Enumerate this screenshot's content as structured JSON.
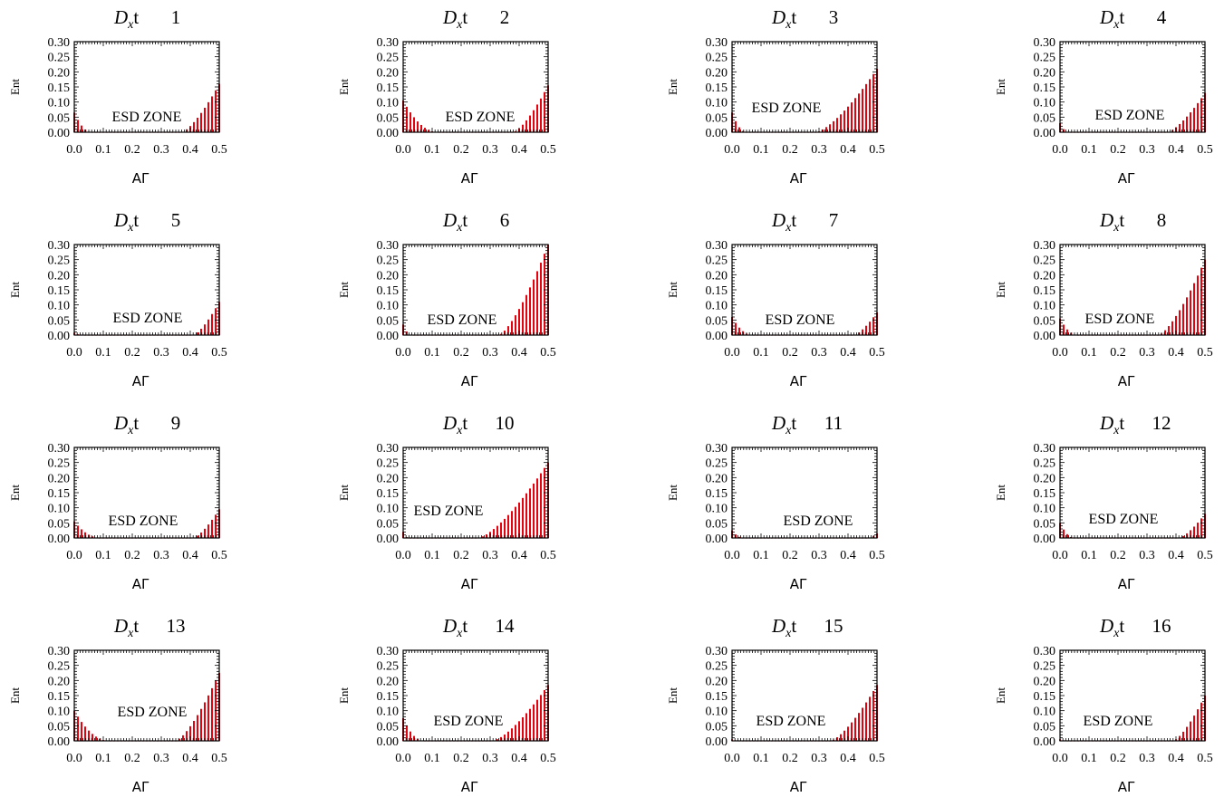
{
  "figure": {
    "title_prefix": "D",
    "title_sub": "x",
    "title_suffix": "t",
    "xlabel": "AΓ",
    "ylabel": "Ent",
    "zone_label": "ESD ZONE",
    "bar_color": "#e8000d",
    "axis_color": "#000000"
  },
  "chart_data": [
    {
      "type": "bar",
      "title_number": "1",
      "xlim": [
        0,
        0.5
      ],
      "ylim": [
        0,
        0.3
      ],
      "xticks": [
        "0.0",
        "0.1",
        "0.2",
        "0.3",
        "0.4",
        "0.5"
      ],
      "yticks": [
        "0.00",
        "0.05",
        "0.10",
        "0.15",
        "0.20",
        "0.25",
        "0.30"
      ],
      "xlabel": "AΓ",
      "ylabel": "Ent",
      "annotation": "ESD ZONE",
      "left": {
        "y0": 0.065,
        "end": 0.06
      },
      "right": {
        "start": 0.37,
        "y1": 0.16
      }
    },
    {
      "type": "bar",
      "title_number": "2",
      "xlim": [
        0,
        0.5
      ],
      "ylim": [
        0,
        0.3
      ],
      "xticks": [
        "0.0",
        "0.1",
        "0.2",
        "0.3",
        "0.4",
        "0.5"
      ],
      "yticks": [
        "0.00",
        "0.05",
        "0.10",
        "0.15",
        "0.20",
        "0.25",
        "0.30"
      ],
      "xlabel": "AΓ",
      "ylabel": "Ent",
      "annotation": "ESD ZONE",
      "left": {
        "y0": 0.105,
        "end": 0.12
      },
      "right": {
        "start": 0.38,
        "y1": 0.155
      }
    },
    {
      "type": "bar",
      "title_number": "3",
      "xlim": [
        0,
        0.5
      ],
      "ylim": [
        0,
        0.3
      ],
      "xticks": [
        "0.0",
        "0.1",
        "0.2",
        "0.3",
        "0.4",
        "0.5"
      ],
      "yticks": [
        "0.00",
        "0.05",
        "0.10",
        "0.15",
        "0.20",
        "0.25",
        "0.30"
      ],
      "xlabel": "AΓ",
      "ylabel": "Ent",
      "annotation": "ESD ZONE",
      "left": {
        "y0": 0.065,
        "end": 0.05
      },
      "right": {
        "start": 0.29,
        "y1": 0.21
      }
    },
    {
      "type": "bar",
      "title_number": "4",
      "xlim": [
        0,
        0.5
      ],
      "ylim": [
        0,
        0.3
      ],
      "xticks": [
        "0.0",
        "0.1",
        "0.2",
        "0.3",
        "0.4",
        "0.5"
      ],
      "yticks": [
        "0.00",
        "0.05",
        "0.10",
        "0.15",
        "0.20",
        "0.25",
        "0.30"
      ],
      "xlabel": "AΓ",
      "ylabel": "Ent",
      "annotation": "ESD ZONE",
      "left": {
        "y0": 0.03,
        "end": 0.03
      },
      "right": {
        "start": 0.37,
        "y1": 0.13
      }
    },
    {
      "type": "bar",
      "title_number": "5",
      "xlim": [
        0,
        0.5
      ],
      "ylim": [
        0,
        0.3
      ],
      "xticks": [
        "0.0",
        "0.1",
        "0.2",
        "0.3",
        "0.4",
        "0.5"
      ],
      "yticks": [
        "0.00",
        "0.05",
        "0.10",
        "0.15",
        "0.20",
        "0.25",
        "0.30"
      ],
      "xlabel": "AΓ",
      "ylabel": "Ent",
      "annotation": "ESD ZONE",
      "left": {
        "y0": 0.008,
        "end": 0.03
      },
      "right": {
        "start": 0.41,
        "y1": 0.11
      }
    },
    {
      "type": "bar",
      "title_number": "6",
      "xlim": [
        0,
        0.5
      ],
      "ylim": [
        0,
        0.3
      ],
      "xticks": [
        "0.0",
        "0.1",
        "0.2",
        "0.3",
        "0.4",
        "0.5"
      ],
      "yticks": [
        "0.00",
        "0.05",
        "0.10",
        "0.15",
        "0.20",
        "0.25",
        "0.30"
      ],
      "xlabel": "AΓ",
      "ylabel": "Ent",
      "annotation": "ESD ZONE",
      "left": {
        "y0": 0.035,
        "end": 0.03
      },
      "right": {
        "start": 0.33,
        "y1": 0.3
      }
    },
    {
      "type": "bar",
      "title_number": "7",
      "xlim": [
        0,
        0.5
      ],
      "ylim": [
        0,
        0.3
      ],
      "xticks": [
        "0.0",
        "0.1",
        "0.2",
        "0.3",
        "0.4",
        "0.5"
      ],
      "yticks": [
        "0.00",
        "0.05",
        "0.10",
        "0.15",
        "0.20",
        "0.25",
        "0.30"
      ],
      "xlabel": "AΓ",
      "ylabel": "Ent",
      "annotation": "ESD ZONE",
      "left": {
        "y0": 0.06,
        "end": 0.07
      },
      "right": {
        "start": 0.42,
        "y1": 0.075
      }
    },
    {
      "type": "bar",
      "title_number": "8",
      "xlim": [
        0,
        0.5
      ],
      "ylim": [
        0,
        0.3
      ],
      "xticks": [
        "0.0",
        "0.1",
        "0.2",
        "0.3",
        "0.4",
        "0.5"
      ],
      "yticks": [
        "0.00",
        "0.05",
        "0.10",
        "0.15",
        "0.20",
        "0.25",
        "0.30"
      ],
      "xlabel": "AΓ",
      "ylabel": "Ent",
      "annotation": "ESD ZONE",
      "left": {
        "y0": 0.055,
        "end": 0.06
      },
      "right": {
        "start": 0.34,
        "y1": 0.25
      }
    },
    {
      "type": "bar",
      "title_number": "9",
      "xlim": [
        0,
        0.5
      ],
      "ylim": [
        0,
        0.3
      ],
      "xticks": [
        "0.0",
        "0.1",
        "0.2",
        "0.3",
        "0.4",
        "0.5"
      ],
      "yticks": [
        "0.00",
        "0.05",
        "0.10",
        "0.15",
        "0.20",
        "0.25",
        "0.30"
      ],
      "xlabel": "AΓ",
      "ylabel": "Ent",
      "annotation": "ESD ZONE",
      "left": {
        "y0": 0.055,
        "end": 0.09
      },
      "right": {
        "start": 0.41,
        "y1": 0.095
      }
    },
    {
      "type": "bar",
      "title_number": "10",
      "xlim": [
        0,
        0.5
      ],
      "ylim": [
        0,
        0.3
      ],
      "xticks": [
        "0.0",
        "0.1",
        "0.2",
        "0.3",
        "0.4",
        "0.5"
      ],
      "yticks": [
        "0.00",
        "0.05",
        "0.10",
        "0.15",
        "0.20",
        "0.25",
        "0.30"
      ],
      "xlabel": "AΓ",
      "ylabel": "Ent",
      "annotation": "ESD ZONE",
      "left": {
        "y0": 0.02,
        "end": 0.02
      },
      "right": {
        "start": 0.26,
        "y1": 0.25
      }
    },
    {
      "type": "bar",
      "title_number": "11",
      "xlim": [
        0,
        0.5
      ],
      "ylim": [
        0,
        0.3
      ],
      "xticks": [
        "0.0",
        "0.1",
        "0.2",
        "0.3",
        "0.4",
        "0.5"
      ],
      "yticks": [
        "0.00",
        "0.05",
        "0.10",
        "0.15",
        "0.20",
        "0.25",
        "0.30"
      ],
      "xlabel": "AΓ",
      "ylabel": "Ent",
      "annotation": "ESD ZONE",
      "left": {
        "y0": 0.025,
        "end": 0.04
      },
      "right": {
        "start": 0.47,
        "y1": 0.015
      }
    },
    {
      "type": "bar",
      "title_number": "12",
      "xlim": [
        0,
        0.5
      ],
      "ylim": [
        0,
        0.3
      ],
      "xticks": [
        "0.0",
        "0.1",
        "0.2",
        "0.3",
        "0.4",
        "0.5"
      ],
      "yticks": [
        "0.00",
        "0.05",
        "0.10",
        "0.15",
        "0.20",
        "0.25",
        "0.30"
      ],
      "xlabel": "AΓ",
      "ylabel": "Ent",
      "annotation": "ESD ZONE",
      "left": {
        "y0": 0.05,
        "end": 0.05
      },
      "right": {
        "start": 0.41,
        "y1": 0.08
      }
    },
    {
      "type": "bar",
      "title_number": "13",
      "xlim": [
        0,
        0.5
      ],
      "ylim": [
        0,
        0.3
      ],
      "xticks": [
        "0.0",
        "0.1",
        "0.2",
        "0.3",
        "0.4",
        "0.5"
      ],
      "yticks": [
        "0.00",
        "0.05",
        "0.10",
        "0.15",
        "0.20",
        "0.25",
        "0.30"
      ],
      "xlabel": "AΓ",
      "ylabel": "Ent",
      "annotation": "ESD ZONE",
      "left": {
        "y0": 0.1,
        "end": 0.12
      },
      "right": {
        "start": 0.35,
        "y1": 0.225
      }
    },
    {
      "type": "bar",
      "title_number": "14",
      "xlim": [
        0,
        0.5
      ],
      "ylim": [
        0,
        0.3
      ],
      "xticks": [
        "0.0",
        "0.1",
        "0.2",
        "0.3",
        "0.4",
        "0.5"
      ],
      "yticks": [
        "0.00",
        "0.05",
        "0.10",
        "0.15",
        "0.20",
        "0.25",
        "0.30"
      ],
      "xlabel": "AΓ",
      "ylabel": "Ent",
      "annotation": "ESD ZONE",
      "left": {
        "y0": 0.075,
        "end": 0.07
      },
      "right": {
        "start": 0.31,
        "y1": 0.185
      }
    },
    {
      "type": "bar",
      "title_number": "15",
      "xlim": [
        0,
        0.5
      ],
      "ylim": [
        0,
        0.3
      ],
      "xticks": [
        "0.0",
        "0.1",
        "0.2",
        "0.3",
        "0.4",
        "0.5"
      ],
      "yticks": [
        "0.00",
        "0.05",
        "0.10",
        "0.15",
        "0.20",
        "0.25",
        "0.30"
      ],
      "xlabel": "AΓ",
      "ylabel": "Ent",
      "annotation": "ESD ZONE",
      "left": {
        "y0": 0.005,
        "end": 0.03
      },
      "right": {
        "start": 0.34,
        "y1": 0.185
      }
    },
    {
      "type": "bar",
      "title_number": "16",
      "xlim": [
        0,
        0.5
      ],
      "ylim": [
        0,
        0.3
      ],
      "xticks": [
        "0.0",
        "0.1",
        "0.2",
        "0.3",
        "0.4",
        "0.5"
      ],
      "yticks": [
        "0.00",
        "0.05",
        "0.10",
        "0.15",
        "0.20",
        "0.25",
        "0.30"
      ],
      "xlabel": "AΓ",
      "ylabel": "Ent",
      "annotation": "ESD ZONE",
      "left": {
        "y0": 0.005,
        "end": 0.03
      },
      "right": {
        "start": 0.39,
        "y1": 0.15
      }
    }
  ]
}
